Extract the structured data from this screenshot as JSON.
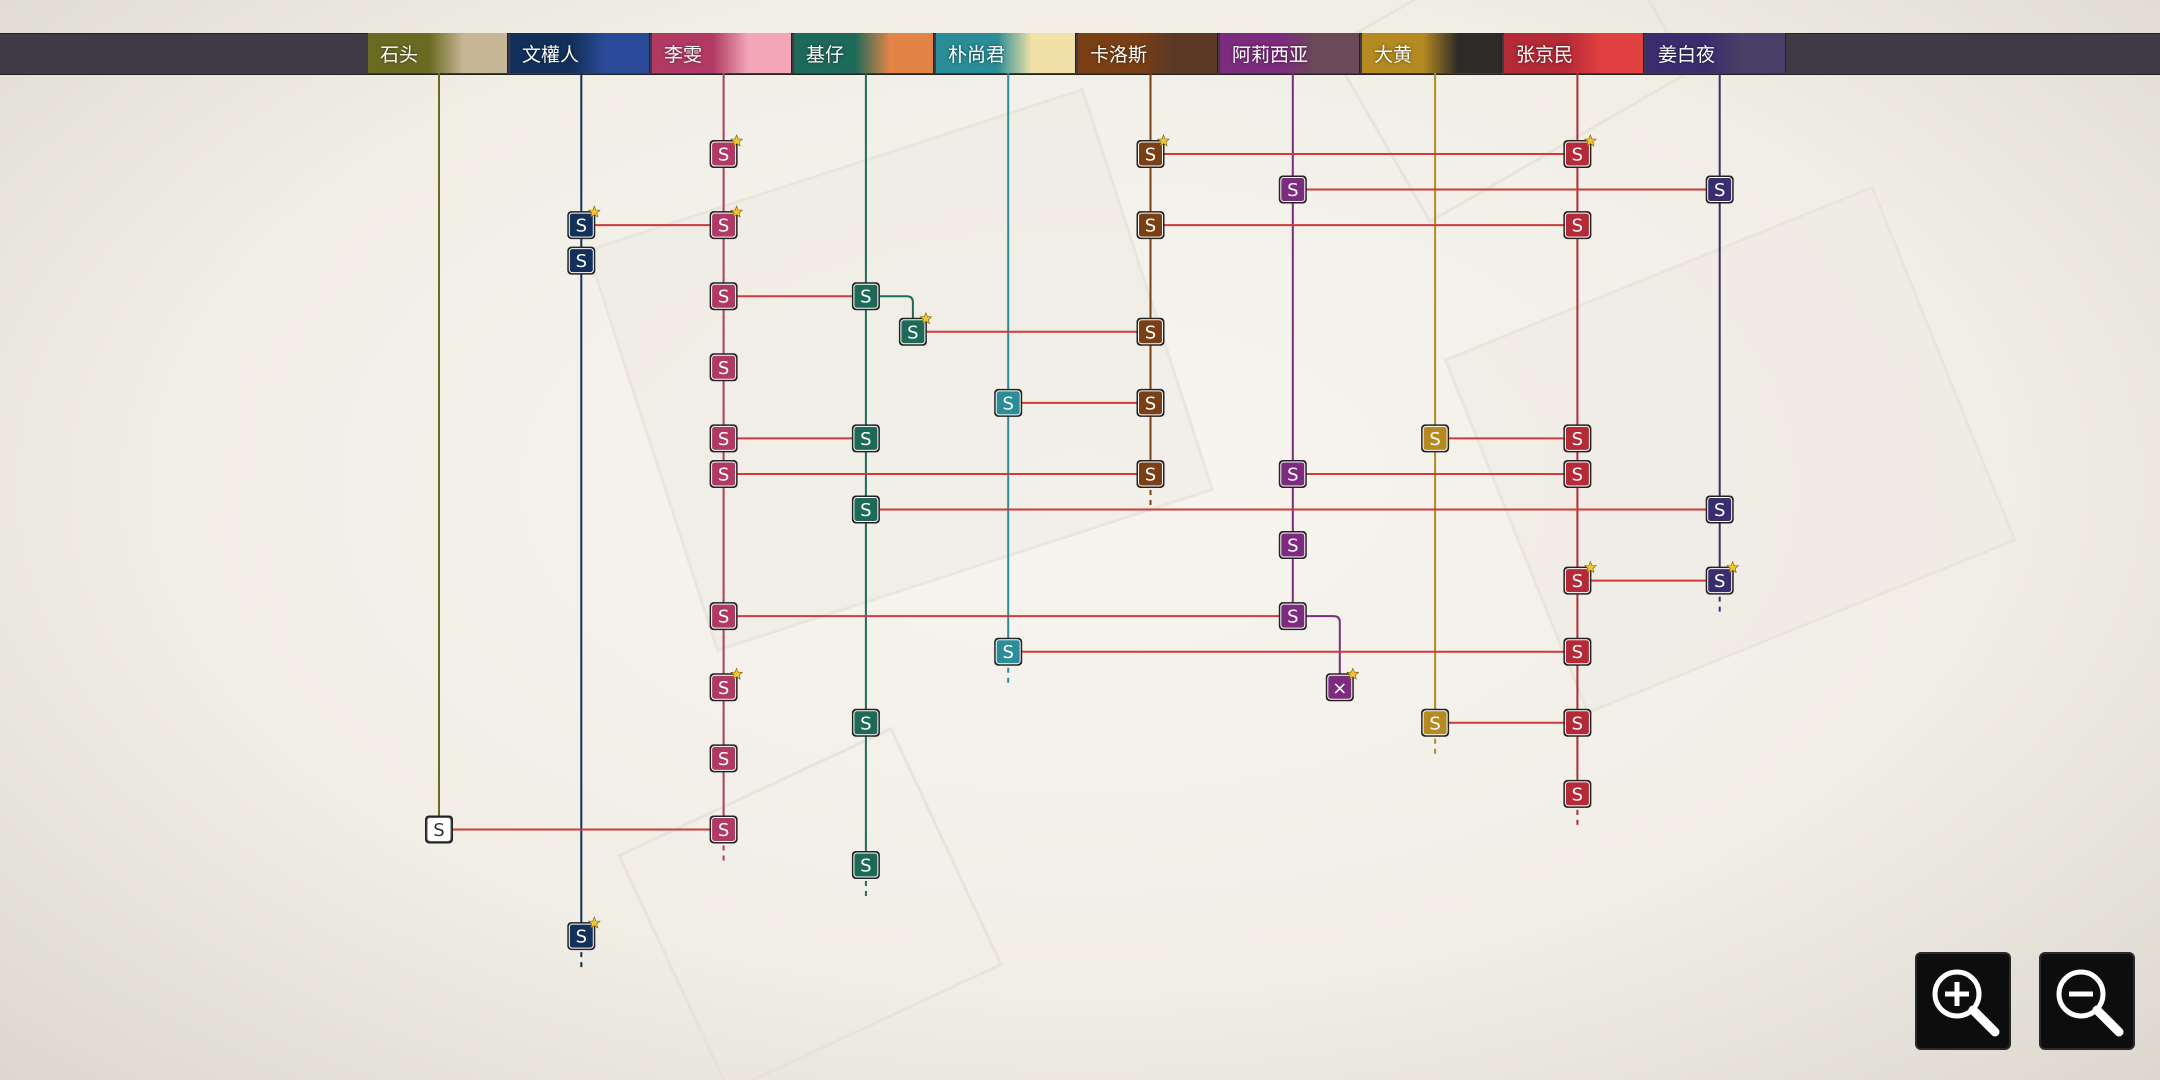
{
  "characters": [
    {
      "id": "c0",
      "name": "石头",
      "color": "#6b6a23",
      "accent": "#c8b796"
    },
    {
      "id": "c1",
      "name": "文權人",
      "color": "#12305a",
      "accent": "#2b4b9a"
    },
    {
      "id": "c2",
      "name": "李雯",
      "color": "#b03a64",
      "accent": "#f2a6b6"
    },
    {
      "id": "c3",
      "name": "基仔",
      "color": "#1e6a58",
      "accent": "#e38447"
    },
    {
      "id": "c4",
      "name": "朴尚君",
      "color": "#2a8d97",
      "accent": "#f1e1a6"
    },
    {
      "id": "c5",
      "name": "卡洛斯",
      "color": "#7a3f14",
      "accent": "#5b3826"
    },
    {
      "id": "c6",
      "name": "阿莉西亚",
      "color": "#7c2b7e",
      "accent": "#6b4a58"
    },
    {
      "id": "c7",
      "name": "大黄",
      "color": "#b48a21",
      "accent": "#2e2a28"
    },
    {
      "id": "c8",
      "name": "张京民",
      "color": "#b42a36",
      "accent": "#e04040"
    },
    {
      "id": "c9",
      "name": "姜白夜",
      "color": "#3a2d6e",
      "accent": "#4a3f66"
    }
  ],
  "node_label": "S",
  "special_node_label": "×",
  "zoom": {
    "in_icon": "zoom-in-icon",
    "out_icon": "zoom-out-icon"
  },
  "nodes": [
    {
      "c": 2,
      "r": 0,
      "star": true
    },
    {
      "c": 5,
      "r": 0,
      "star": true
    },
    {
      "c": 8,
      "r": 0,
      "star": true
    },
    {
      "c": 6,
      "r": 1
    },
    {
      "c": 9,
      "r": 1
    },
    {
      "c": 1,
      "r": 2,
      "star": true
    },
    {
      "c": 2,
      "r": 2,
      "star": true
    },
    {
      "c": 5,
      "r": 2
    },
    {
      "c": 8,
      "r": 2
    },
    {
      "c": 1,
      "r": 3
    },
    {
      "c": 2,
      "r": 4
    },
    {
      "c": 3,
      "r": 4
    },
    {
      "c": 3,
      "r": 5,
      "offset": true,
      "star": true
    },
    {
      "c": 5,
      "r": 5
    },
    {
      "c": 2,
      "r": 6
    },
    {
      "c": 4,
      "r": 7
    },
    {
      "c": 5,
      "r": 7
    },
    {
      "c": 2,
      "r": 8
    },
    {
      "c": 3,
      "r": 8
    },
    {
      "c": 7,
      "r": 8
    },
    {
      "c": 8,
      "r": 8
    },
    {
      "c": 2,
      "r": 9
    },
    {
      "c": 5,
      "r": 9
    },
    {
      "c": 6,
      "r": 9
    },
    {
      "c": 8,
      "r": 9
    },
    {
      "c": 3,
      "r": 10
    },
    {
      "c": 9,
      "r": 10
    },
    {
      "c": 6,
      "r": 11
    },
    {
      "c": 8,
      "r": 12,
      "star": true
    },
    {
      "c": 9,
      "r": 12,
      "star": true
    },
    {
      "c": 2,
      "r": 13
    },
    {
      "c": 6,
      "r": 13
    },
    {
      "c": 4,
      "r": 14
    },
    {
      "c": 8,
      "r": 14
    },
    {
      "c": 2,
      "r": 15,
      "star": true
    },
    {
      "c": 6,
      "r": 15,
      "offset": true,
      "special": true,
      "star": true
    },
    {
      "c": 3,
      "r": 16
    },
    {
      "c": 7,
      "r": 16
    },
    {
      "c": 8,
      "r": 16
    },
    {
      "c": 2,
      "r": 17
    },
    {
      "c": 8,
      "r": 18
    },
    {
      "c": 0,
      "r": 19,
      "white": true
    },
    {
      "c": 2,
      "r": 19
    },
    {
      "c": 3,
      "r": 20
    },
    {
      "c": 1,
      "r": 22,
      "star": true
    }
  ],
  "links": [
    {
      "a": [
        5,
        0
      ],
      "b": [
        8,
        0
      ]
    },
    {
      "a": [
        6,
        1
      ],
      "b": [
        9,
        1
      ]
    },
    {
      "a": [
        1,
        2
      ],
      "b": [
        2,
        2
      ]
    },
    {
      "a": [
        5,
        2
      ],
      "b": [
        8,
        2
      ]
    },
    {
      "a": [
        2,
        4
      ],
      "b": [
        3,
        4
      ]
    },
    {
      "a": [
        3,
        5,
        true
      ],
      "b": [
        5,
        5
      ]
    },
    {
      "a": [
        4,
        7
      ],
      "b": [
        5,
        7
      ]
    },
    {
      "a": [
        2,
        8
      ],
      "b": [
        3,
        8
      ]
    },
    {
      "a": [
        7,
        8
      ],
      "b": [
        8,
        8
      ]
    },
    {
      "a": [
        2,
        9
      ],
      "b": [
        5,
        9
      ]
    },
    {
      "a": [
        6,
        9
      ],
      "b": [
        8,
        9
      ]
    },
    {
      "a": [
        3,
        10
      ],
      "b": [
        9,
        10
      ]
    },
    {
      "a": [
        8,
        12
      ],
      "b": [
        9,
        12
      ]
    },
    {
      "a": [
        2,
        13
      ],
      "b": [
        6,
        13
      ]
    },
    {
      "a": [
        4,
        14
      ],
      "b": [
        8,
        14
      ]
    },
    {
      "a": [
        7,
        16
      ],
      "b": [
        8,
        16
      ]
    },
    {
      "a": [
        0,
        19
      ],
      "b": [
        2,
        19
      ]
    }
  ],
  "branches": [
    {
      "c": 3,
      "from": 4,
      "to": 5
    },
    {
      "c": 6,
      "from": 13,
      "to": 15
    }
  ],
  "tracks": [
    {
      "c": 0,
      "start": 0,
      "end": 19,
      "dashed": false
    },
    {
      "c": 1,
      "start": 0,
      "end": 22,
      "dashed": true
    },
    {
      "c": 2,
      "start": 0,
      "end": 19,
      "dashed": true
    },
    {
      "c": 3,
      "start": 0,
      "end": 20,
      "dashed": true
    },
    {
      "c": 4,
      "start": 0,
      "end": 14,
      "dashed": true
    },
    {
      "c": 5,
      "start": 0,
      "end": 9,
      "dashed": true
    },
    {
      "c": 6,
      "start": 0,
      "end": 13,
      "dashed": false
    },
    {
      "c": 7,
      "start": 0,
      "end": 16,
      "dashed": true
    },
    {
      "c": 8,
      "start": 0,
      "end": 18,
      "dashed": true
    },
    {
      "c": 9,
      "start": 0,
      "end": 12,
      "dashed": true
    }
  ]
}
